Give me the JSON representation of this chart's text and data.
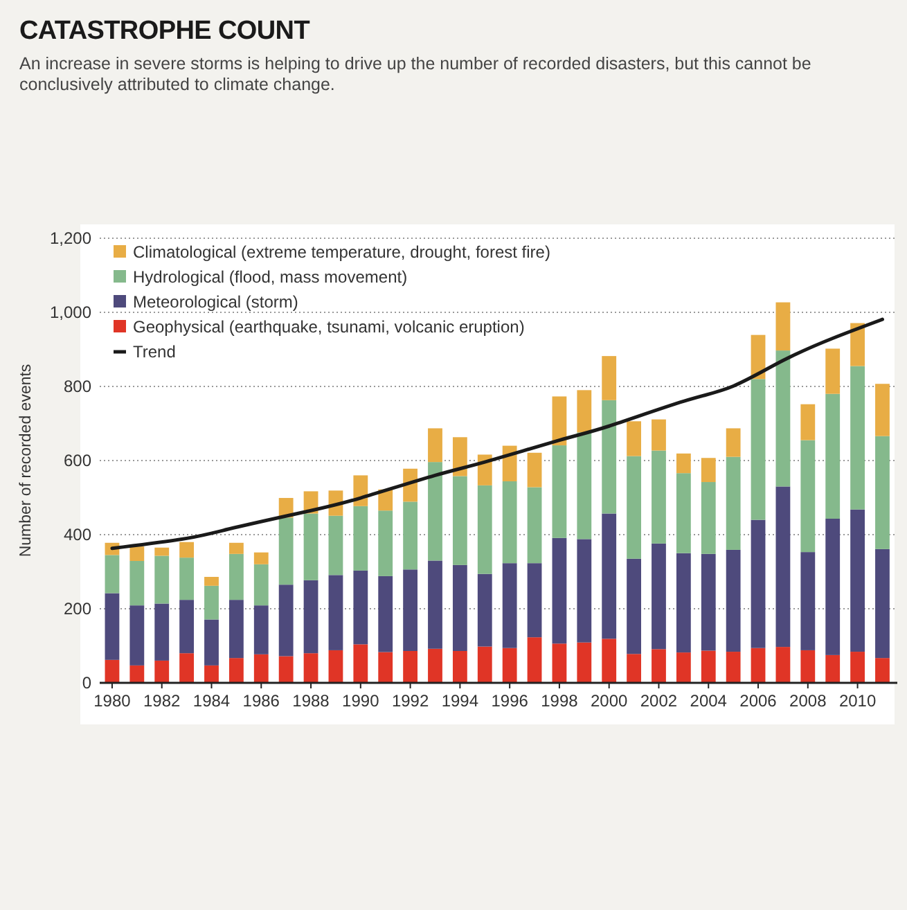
{
  "chart_data": {
    "type": "bar",
    "stacked": true,
    "title": "CATASTROPHE COUNT",
    "subtitle": "An increase in severe storms is helping to drive up the number of recorded disasters, but this cannot be conclusively attributed to climate change.",
    "ylabel": "Number of recorded events",
    "x": [
      1980,
      1981,
      1982,
      1983,
      1984,
      1985,
      1986,
      1987,
      1988,
      1989,
      1990,
      1991,
      1992,
      1993,
      1994,
      1995,
      1996,
      1997,
      1998,
      1999,
      2000,
      2001,
      2002,
      2003,
      2004,
      2005,
      2006,
      2007,
      2008,
      2009,
      2010,
      2011
    ],
    "series": [
      {
        "name": "Geophysical (earthquake, tsunami, volcanic eruption)",
        "color": "#e03526",
        "values": [
          62,
          47,
          60,
          80,
          47,
          67,
          77,
          72,
          80,
          88,
          104,
          83,
          86,
          92,
          86,
          98,
          94,
          123,
          106,
          109,
          119,
          78,
          91,
          82,
          87,
          84,
          94,
          97,
          88,
          75,
          84,
          67
        ]
      },
      {
        "name": "Meteorological (storm)",
        "color": "#4e4a7c",
        "values": [
          180,
          162,
          154,
          144,
          124,
          157,
          132,
          193,
          197,
          203,
          199,
          205,
          220,
          238,
          232,
          196,
          229,
          200,
          285,
          279,
          338,
          257,
          285,
          268,
          261,
          275,
          346,
          433,
          265,
          368,
          384,
          294
        ]
      },
      {
        "name": "Hydrological (flood, mass movement)",
        "color": "#85b98c",
        "values": [
          103,
          120,
          129,
          114,
          91,
          124,
          111,
          181,
          180,
          160,
          174,
          177,
          183,
          266,
          240,
          239,
          221,
          205,
          250,
          288,
          306,
          277,
          251,
          216,
          194,
          251,
          380,
          367,
          302,
          337,
          387,
          305
        ]
      },
      {
        "name": "Climatological (extreme temperature, drought, forest fire)",
        "color": "#e8ad45",
        "values": [
          33,
          39,
          22,
          42,
          24,
          30,
          32,
          53,
          60,
          68,
          83,
          57,
          89,
          91,
          105,
          83,
          96,
          93,
          132,
          114,
          119,
          94,
          84,
          53,
          65,
          77,
          119,
          130,
          97,
          122,
          116,
          141
        ]
      },
      {
        "name": "Trend",
        "type": "line",
        "color": "#1a1a1a",
        "x": [
          1980,
          1983,
          1985,
          1988,
          1990,
          1993,
          1995,
          1998,
          2000,
          2003,
          2005,
          2007,
          2009,
          2011
        ],
        "values": [
          363,
          390,
          420,
          465,
          499,
          560,
          596,
          655,
          693,
          760,
          801,
          870,
          930,
          981
        ]
      }
    ],
    "xlim": [
      1979.5,
      2011.6
    ],
    "xticks": [
      1980,
      1982,
      1984,
      1986,
      1988,
      1990,
      1992,
      1994,
      1996,
      1998,
      2000,
      2002,
      2004,
      2006,
      2008,
      2010
    ],
    "ylim": [
      0,
      1200
    ],
    "yticks": [
      0,
      200,
      400,
      600,
      800,
      {
        "value": 1000,
        "label": "1,000"
      },
      {
        "value": 1200,
        "label": "1,200"
      }
    ],
    "grid": "y",
    "legend": "top left"
  }
}
